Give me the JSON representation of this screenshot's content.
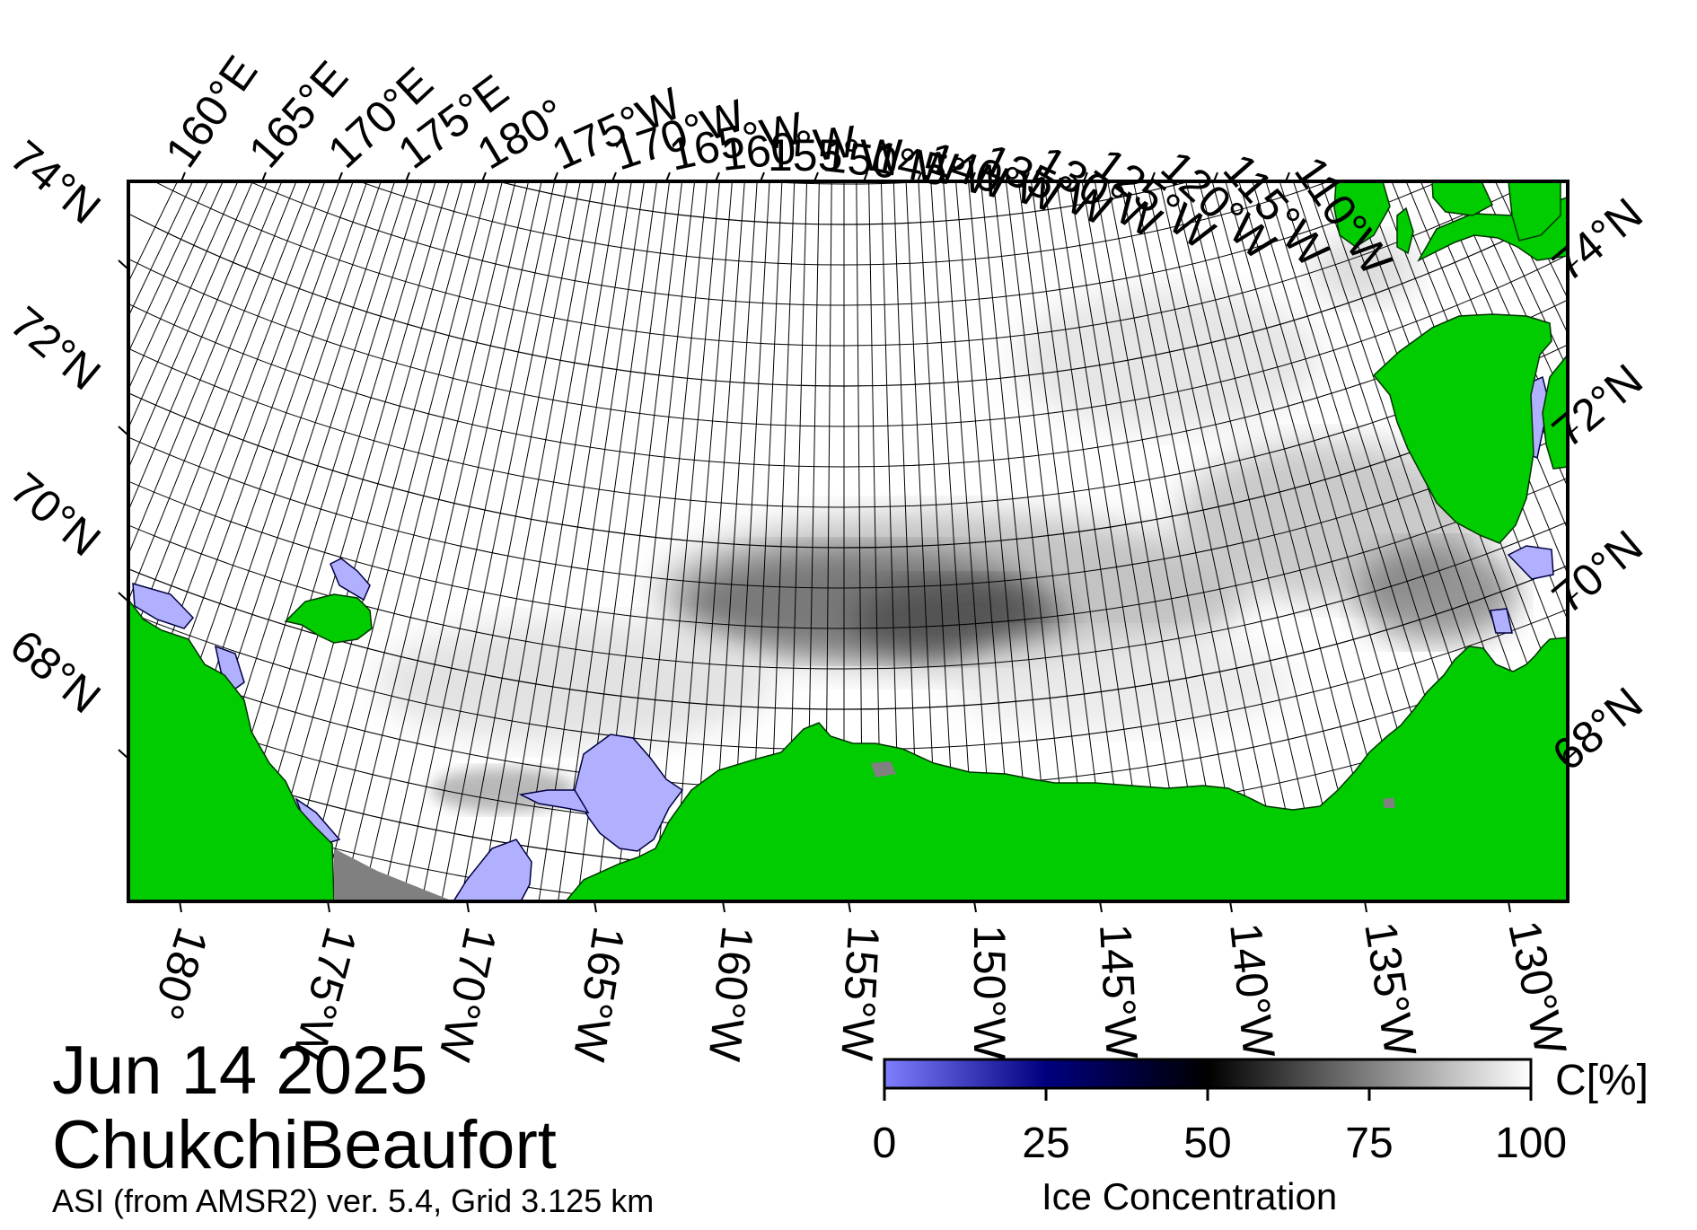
{
  "date": "Jun 14 2025",
  "region": "ChukchiBeaufort",
  "product": "ASI (from AMSR2) ver. 5.4,  Grid 3.125 km",
  "colorbar": {
    "title": "Ice Concentration",
    "unit": "C[%]",
    "ticks": [
      "0",
      "25",
      "50",
      "75",
      "100"
    ],
    "stops": [
      "#7f7fff",
      "#00007f",
      "#000000",
      "#7f7f7f",
      "#ffffff"
    ]
  },
  "colors": {
    "land": "#00cc00",
    "ocean": "#ffffff",
    "nodata": "#808080",
    "low_ice": "#b0b0ff",
    "frame": "#000000"
  },
  "top_lon_labels": [
    "160°E",
    "165°E",
    "170°E",
    "175°E",
    "180°",
    "175°W",
    "170°W",
    "165°W",
    "160°W",
    "155°W",
    "150°W",
    "145°W",
    "140°W",
    "135°W",
    "130°W",
    "125°W",
    "120°W",
    "115°W",
    "110°W"
  ],
  "bottom_lon_labels": [
    "180°",
    "175°W",
    "170°W",
    "165°W",
    "160°W",
    "155°W",
    "150°W",
    "145°W",
    "140°W",
    "135°W",
    "130°W"
  ],
  "lat_labels": [
    "74°N",
    "72°N",
    "70°N",
    "68°N"
  ]
}
